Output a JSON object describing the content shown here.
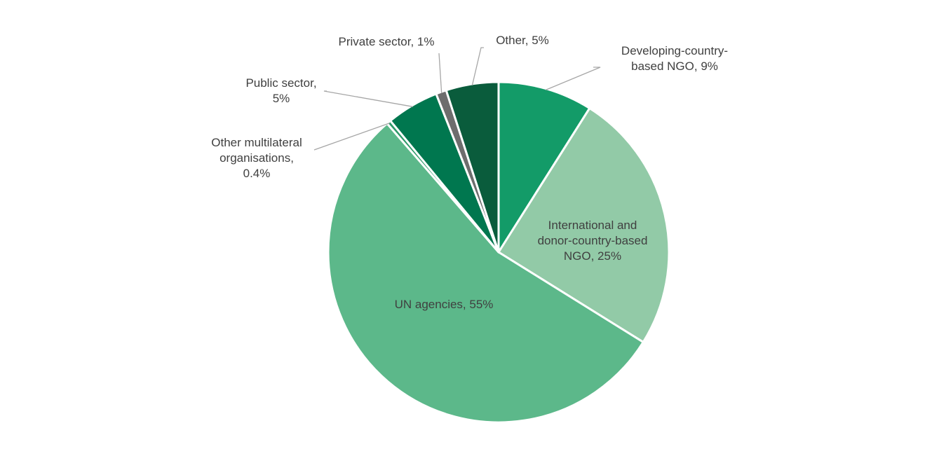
{
  "chart_data": {
    "type": "pie",
    "title": "",
    "start_angle_deg": 0,
    "direction": "clockwise",
    "slices": [
      {
        "name": "Developing-country-based NGO",
        "value": 9,
        "color": "#139b68",
        "label_lines": [
          "Developing-country-",
          "based NGO, 9%"
        ]
      },
      {
        "name": "International and donor-country-based NGO",
        "value": 25,
        "color": "#92caa7",
        "label_lines": [
          "International and",
          "donor-country-based",
          "NGO, 25%"
        ]
      },
      {
        "name": "UN agencies",
        "value": 55,
        "color": "#5cb88a",
        "label_lines": [
          "UN agencies, 55%"
        ]
      },
      {
        "name": "Other multilateral organisations",
        "value": 0.4,
        "color": "#2f9a6a",
        "label_lines": [
          "Other multilateral",
          "organisations,",
          "0.4%"
        ]
      },
      {
        "name": "Public sector",
        "value": 5,
        "color": "#00774f",
        "label_lines": [
          "Public sector,",
          "5%"
        ]
      },
      {
        "name": "Private sector",
        "value": 1,
        "color": "#6d6d6d",
        "label_lines": [
          "Private sector, 1%"
        ]
      },
      {
        "name": "Other",
        "value": 5,
        "color": "#0a5c3c",
        "label_lines": [
          "Other, 5%"
        ]
      }
    ]
  }
}
